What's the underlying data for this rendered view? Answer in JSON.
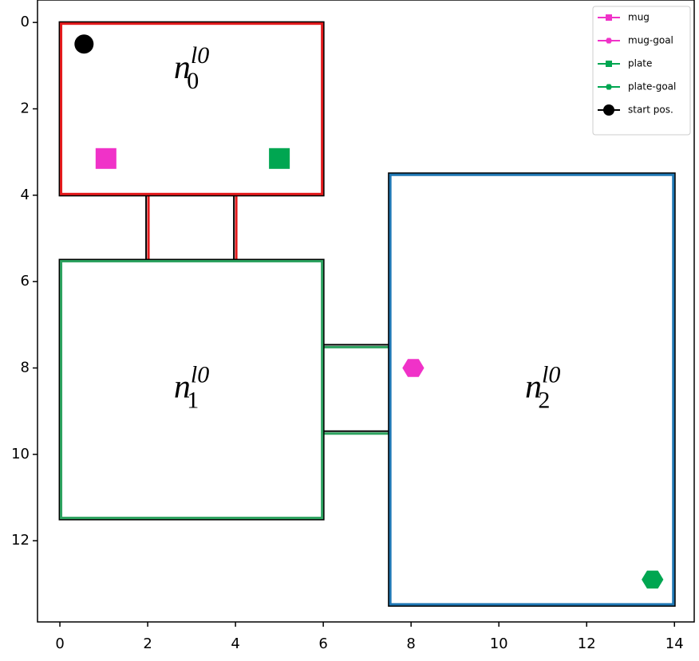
{
  "chart_data": {
    "type": "map",
    "xlim": [
      -0.51,
      14.45
    ],
    "ylim": [
      13.88,
      -0.52
    ],
    "xticks": [
      0,
      2,
      4,
      6,
      8,
      10,
      12,
      14
    ],
    "yticks": [
      0,
      2,
      4,
      6,
      8,
      10,
      12
    ],
    "rooms": [
      {
        "base": "n",
        "sub": "0",
        "sup": "l0",
        "color": "#e41a1c",
        "x0": 0,
        "x1": 6,
        "y0": 0,
        "y1": 4,
        "lx": 3,
        "ly": 1.1
      },
      {
        "base": "n",
        "sub": "1",
        "sup": "l0",
        "color": "#2ca25f",
        "x0": 0,
        "x1": 6,
        "y0": 5.5,
        "y1": 11.5,
        "lx": 3,
        "ly": 8.5
      },
      {
        "base": "n",
        "sub": "2",
        "sup": "l0",
        "color": "#1f77b4",
        "x0": 7.5,
        "x1": 14,
        "y0": 3.5,
        "y1": 13.5,
        "lx": 11,
        "ly": 8.5
      }
    ],
    "corridors": [
      {
        "color": "#e41a1c",
        "x1": 2,
        "x2": 2,
        "y1": 4,
        "y2": 5.5
      },
      {
        "color": "#e41a1c",
        "x1": 4,
        "x2": 4,
        "y1": 4,
        "y2": 5.5
      },
      {
        "color": "#2ca25f",
        "x1": 6,
        "x2": 7.5,
        "y1": 7.5,
        "y2": 7.5
      },
      {
        "color": "#2ca25f",
        "x1": 6,
        "x2": 7.5,
        "y1": 9.5,
        "y2": 9.5
      }
    ],
    "series": [
      {
        "name": "mug",
        "color": "#f032c8",
        "marker": "square",
        "x": [
          1.05
        ],
        "y": [
          3.15
        ]
      },
      {
        "name": "mug-goal",
        "color": "#f032c8",
        "marker": "hexagon",
        "x": [
          8.05
        ],
        "y": [
          8
        ]
      },
      {
        "name": "plate",
        "color": "#00a651",
        "marker": "square",
        "x": [
          5
        ],
        "y": [
          3.15
        ]
      },
      {
        "name": "plate-goal",
        "color": "#00a651",
        "marker": "hexagon",
        "x": [
          13.5
        ],
        "y": [
          12.9
        ]
      },
      {
        "name": "start pos.",
        "color": "#000000",
        "marker": "circle",
        "x": [
          0.55
        ],
        "y": [
          0.5
        ]
      }
    ],
    "legend": "upper right"
  }
}
